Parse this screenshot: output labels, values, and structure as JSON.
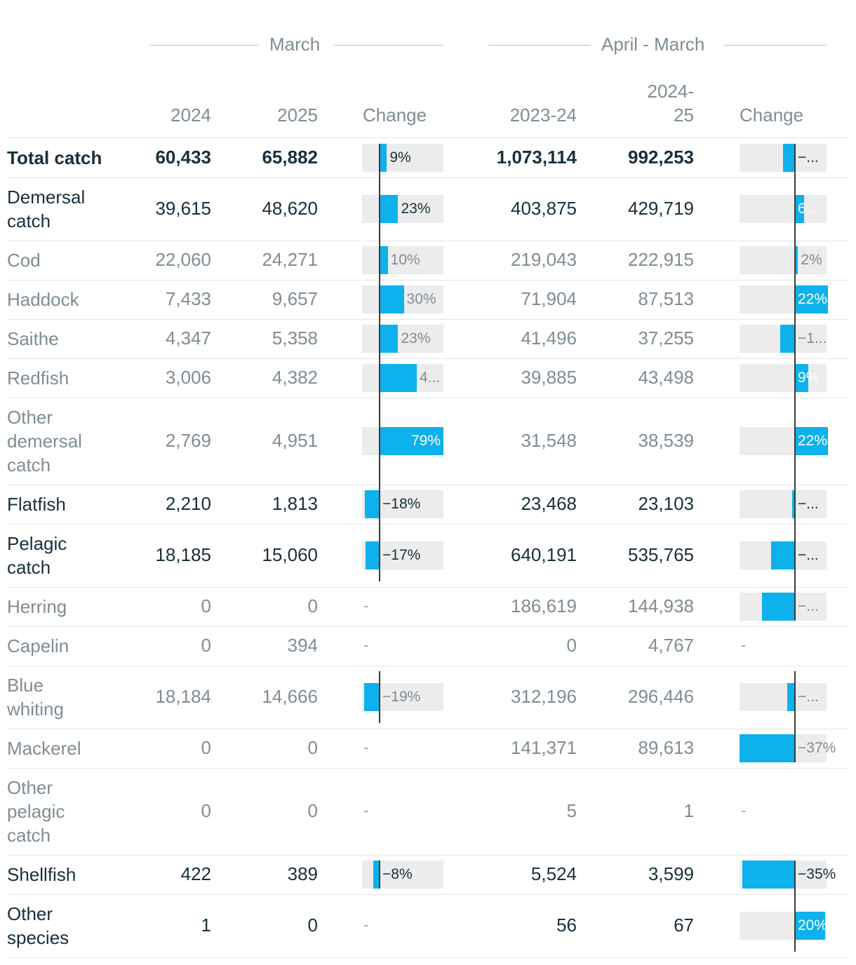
{
  "header": {
    "group_month": "March",
    "group_year": "April - March",
    "col_2024": "2024",
    "col_2025": "2025",
    "col_change_month": "Change",
    "col_2023_24": "2023-24",
    "col_2024_25_line1": "2024-",
    "col_2024_25_line2": "25",
    "col_change_year": "Change"
  },
  "colors": {
    "bar": "#0db1eb",
    "bar_bg": "#ececec",
    "axis": "#3a3a3a",
    "text_dark": "#17303d",
    "text_light": "#7f8d95"
  },
  "chart_data": {
    "type": "table",
    "rows": [
      {
        "name": [
          "Total catch"
        ],
        "style": "bold",
        "v2024": "60,433",
        "v2025": "65,882",
        "change_month": 9,
        "change_month_label": "9%",
        "v2023_24": "1,073,114",
        "v2024_25": "992,253",
        "change_year": -8,
        "change_year_label": "−..."
      },
      {
        "name": [
          "Demersal",
          "catch"
        ],
        "style": "dark",
        "v2024": "39,615",
        "v2025": "48,620",
        "change_month": 23,
        "change_month_label": "23%",
        "v2023_24": "403,875",
        "v2024_25": "429,719",
        "change_year": 6,
        "change_year_label": "6..."
      },
      {
        "name": [
          "Cod"
        ],
        "style": "light",
        "v2024": "22,060",
        "v2025": "24,271",
        "change_month": 10,
        "change_month_label": "10%",
        "v2023_24": "219,043",
        "v2024_25": "222,915",
        "change_year": 2,
        "change_year_label": "2%"
      },
      {
        "name": [
          "Haddock"
        ],
        "style": "light",
        "v2024": "7,433",
        "v2025": "9,657",
        "change_month": 30,
        "change_month_label": "30%",
        "v2023_24": "71,904",
        "v2024_25": "87,513",
        "change_year": 22,
        "change_year_label": "22%"
      },
      {
        "name": [
          "Saithe"
        ],
        "style": "light",
        "v2024": "4,347",
        "v2025": "5,358",
        "change_month": 23,
        "change_month_label": "23%",
        "v2023_24": "41,496",
        "v2024_25": "37,255",
        "change_year": -10,
        "change_year_label": "−1..."
      },
      {
        "name": [
          "Redfish"
        ],
        "style": "light",
        "v2024": "3,006",
        "v2025": "4,382",
        "change_month": 46,
        "change_month_label": "4...",
        "v2023_24": "39,885",
        "v2024_25": "43,498",
        "change_year": 9,
        "change_year_label": "9%"
      },
      {
        "name": [
          "Other",
          "demersal",
          "catch"
        ],
        "style": "light",
        "v2024": "2,769",
        "v2025": "4,951",
        "change_month": 79,
        "change_month_label": "79%",
        "v2023_24": "31,548",
        "v2024_25": "38,539",
        "change_year": 22,
        "change_year_label": "22%"
      },
      {
        "name": [
          "Flatfish"
        ],
        "style": "dark",
        "v2024": "2,210",
        "v2025": "1,813",
        "change_month": -18,
        "change_month_label": "−18%",
        "v2023_24": "23,468",
        "v2024_25": "23,103",
        "change_year": -2,
        "change_year_label": "−..."
      },
      {
        "name": [
          "Pelagic",
          "catch"
        ],
        "style": "dark",
        "v2024": "18,185",
        "v2025": "15,060",
        "change_month": -17,
        "change_month_label": "−17%",
        "v2023_24": "640,191",
        "v2024_25": "535,765",
        "change_year": -16,
        "change_year_label": "−..."
      },
      {
        "name": [
          "Herring"
        ],
        "style": "light",
        "v2024": "0",
        "v2025": "0",
        "change_month": null,
        "change_month_label": "-",
        "v2023_24": "186,619",
        "v2024_25": "144,938",
        "change_year": -22,
        "change_year_label": "−..."
      },
      {
        "name": [
          "Capelin"
        ],
        "style": "light",
        "v2024": "0",
        "v2025": "394",
        "change_month": null,
        "change_month_label": "-",
        "v2023_24": "0",
        "v2024_25": "4,767",
        "change_year": null,
        "change_year_label": "-"
      },
      {
        "name": [
          "Blue",
          "whiting"
        ],
        "style": "light",
        "v2024": "18,184",
        "v2025": "14,666",
        "change_month": -19,
        "change_month_label": "−19%",
        "v2023_24": "312,196",
        "v2024_25": "296,446",
        "change_year": -5,
        "change_year_label": "−..."
      },
      {
        "name": [
          "Mackerel"
        ],
        "style": "light",
        "v2024": "0",
        "v2025": "0",
        "change_month": null,
        "change_month_label": "-",
        "v2023_24": "141,371",
        "v2024_25": "89,613",
        "change_year": -37,
        "change_year_label": "−37%"
      },
      {
        "name": [
          "Other",
          "pelagic",
          "catch"
        ],
        "style": "light",
        "v2024": "0",
        "v2025": "0",
        "change_month": null,
        "change_month_label": "-",
        "v2023_24": "5",
        "v2024_25": "1",
        "change_year": null,
        "change_year_label": "-"
      },
      {
        "name": [
          "Shellfish"
        ],
        "style": "dark",
        "v2024": "422",
        "v2025": "389",
        "change_month": -8,
        "change_month_label": "−8%",
        "v2023_24": "5,524",
        "v2024_25": "3,599",
        "change_year": -35,
        "change_year_label": "−35%"
      },
      {
        "name": [
          "Other",
          "species"
        ],
        "style": "dark",
        "v2024": "1",
        "v2025": "0",
        "change_month": null,
        "change_month_label": "-",
        "v2023_24": "56",
        "v2024_25": "67",
        "change_year": 20,
        "change_year_label": "20%"
      }
    ]
  }
}
